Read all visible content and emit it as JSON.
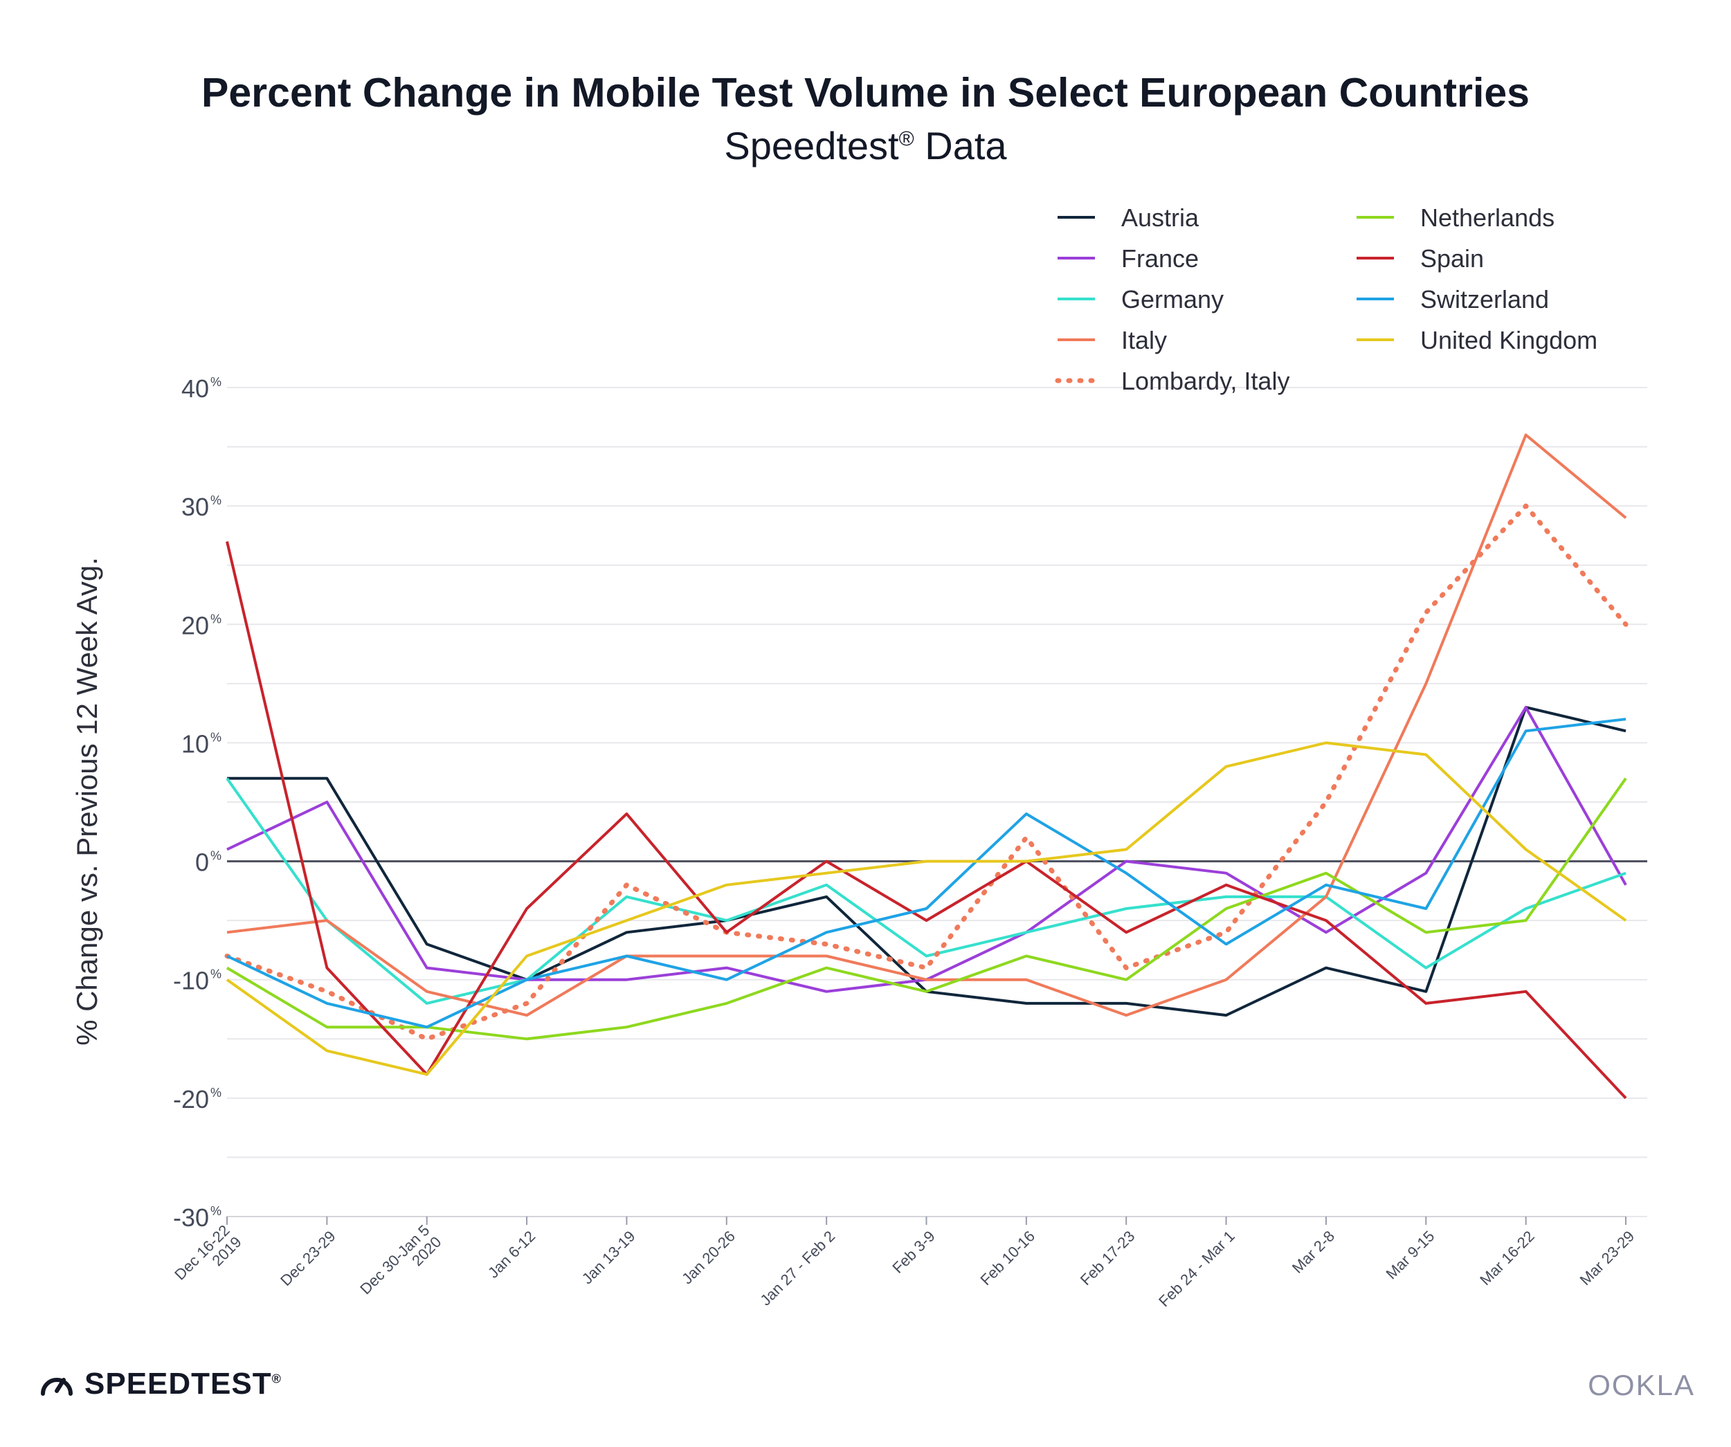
{
  "title": "Percent Change in Mobile Test Volume in Select European Countries",
  "subtitle": "Speedtest",
  "subtitle_mark": "®",
  "subtitle_tail": " Data",
  "brand_left": "SPEEDTEST",
  "brand_left_mark": "®",
  "brand_right": "OOKLA",
  "chart_data": {
    "type": "line",
    "ylabel": "% Change vs. Previous 12 Week Avg.",
    "ylim": [
      -30,
      40
    ],
    "yticks": [
      40,
      30,
      20,
      10,
      0,
      -10,
      -20,
      -30
    ],
    "ytick_labels": [
      "40",
      "30",
      "20",
      "10",
      "0",
      "-10",
      "-20",
      "-30"
    ],
    "ytick_suffix": "%",
    "grid": true,
    "legend_position": "top-right",
    "categories": [
      [
        "Dec 16-22",
        "2019"
      ],
      [
        "Dec 23-29"
      ],
      [
        "Dec 30-Jan 5",
        "2020"
      ],
      [
        "Jan 6-12"
      ],
      [
        "Jan 13-19"
      ],
      [
        "Jan 20-26"
      ],
      [
        "Jan 27 - Feb 2"
      ],
      [
        "Feb 3-9"
      ],
      [
        "Feb 10-16"
      ],
      [
        "Feb 17-23"
      ],
      [
        "Feb 24 - Mar 1"
      ],
      [
        "Mar 2-8"
      ],
      [
        "Mar 9-15"
      ],
      [
        "Mar 16-22"
      ],
      [
        "Mar 23-29"
      ]
    ],
    "series": [
      {
        "name": "Austria",
        "color": "#10263b",
        "dotted": false,
        "values": [
          7,
          7,
          -7,
          -10,
          -6,
          -5,
          -3,
          -11,
          -12,
          -12,
          -13,
          -9,
          -11,
          13,
          11
        ]
      },
      {
        "name": "France",
        "color": "#9b3fd9",
        "dotted": false,
        "values": [
          1,
          5,
          -9,
          -10,
          -10,
          -9,
          -11,
          -10,
          -6,
          0,
          -1,
          -6,
          -1,
          13,
          -2
        ]
      },
      {
        "name": "Germany",
        "color": "#36e0cd",
        "dotted": false,
        "values": [
          7,
          -5,
          -12,
          -10,
          -3,
          -5,
          -2,
          -8,
          -6,
          -4,
          -3,
          -3,
          -9,
          -4,
          -1
        ]
      },
      {
        "name": "Italy",
        "color": "#f07a5a",
        "dotted": false,
        "values": [
          -6,
          -5,
          -11,
          -13,
          -8,
          -8,
          -8,
          -10,
          -10,
          -13,
          -10,
          -3,
          15,
          36,
          29
        ]
      },
      {
        "name": "Lombardy, Italy",
        "color": "#f07a5a",
        "dotted": true,
        "values": [
          -8,
          -11,
          -15,
          -12,
          -2,
          -6,
          -7,
          -9,
          2,
          -9,
          -6,
          5,
          21,
          30,
          20
        ]
      },
      {
        "name": "Netherlands",
        "color": "#8ed81f",
        "dotted": false,
        "values": [
          -9,
          -14,
          -14,
          -15,
          -14,
          -12,
          -9,
          -11,
          -8,
          -10,
          -4,
          -1,
          -6,
          -5,
          7
        ]
      },
      {
        "name": "Spain",
        "color": "#c8232c",
        "dotted": false,
        "values": [
          27,
          -9,
          -18,
          -4,
          4,
          -6,
          0,
          -5,
          0,
          -6,
          -2,
          -5,
          -12,
          -11,
          -20
        ]
      },
      {
        "name": "Switzerland",
        "color": "#1fa3e5",
        "dotted": false,
        "values": [
          -8,
          -12,
          -14,
          -10,
          -8,
          -10,
          -6,
          -4,
          4,
          -1,
          -7,
          -2,
          -4,
          11,
          12
        ]
      },
      {
        "name": "United Kingdom",
        "color": "#e6c81e",
        "dotted": false,
        "values": [
          -10,
          -16,
          -18,
          -8,
          -5,
          -2,
          -1,
          0,
          0,
          1,
          8,
          10,
          9,
          1,
          -5
        ]
      }
    ]
  }
}
